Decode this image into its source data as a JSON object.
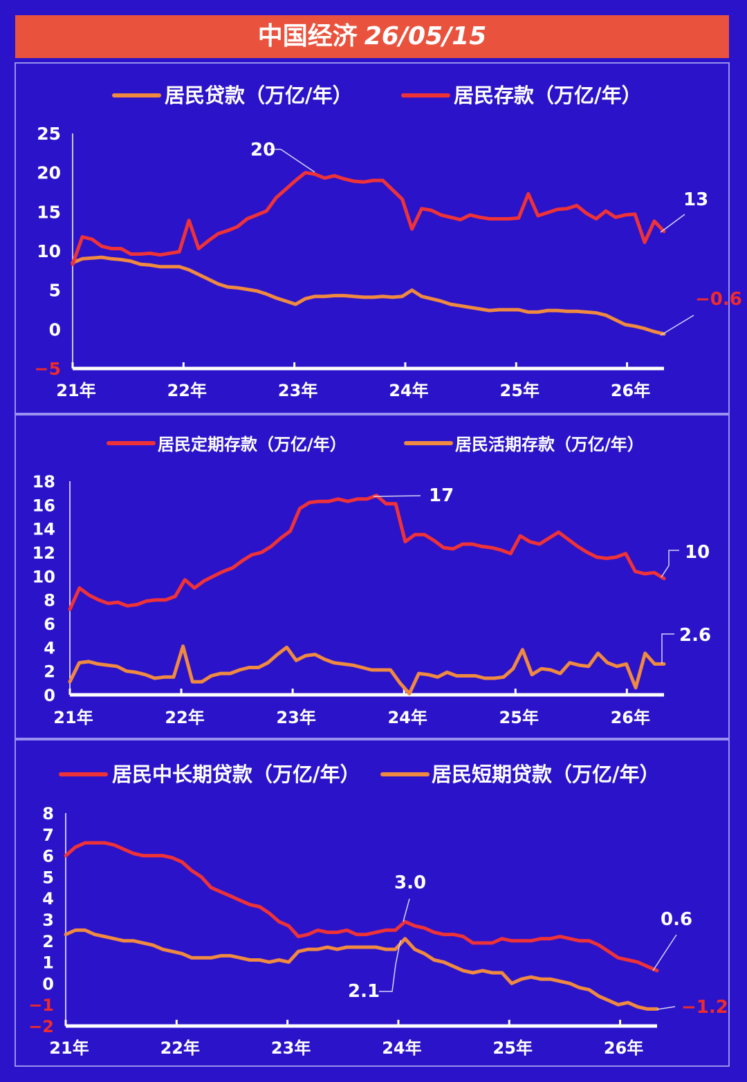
{
  "header": {
    "title_cn": "中国经济",
    "title_date": "26/05/15"
  },
  "colors": {
    "background": "#2b13c9",
    "header": "#e9533e",
    "red": "#ee3338",
    "orange": "#ef8a40",
    "axis": "#ffffff",
    "negative": "#ef2b2b"
  },
  "chart_data": [
    {
      "type": "line",
      "x_tick_labels": [
        "21年",
        "22年",
        "23年",
        "24年",
        "25年",
        "26年"
      ],
      "ylim": [
        -5,
        25
      ],
      "y_ticks": [
        "-5",
        "0",
        "5",
        "10",
        "15",
        "20",
        "25"
      ],
      "series": [
        {
          "name": "居民贷款（万亿/年）",
          "color": "#ef8a40",
          "values": [
            8.5,
            9.0,
            9.1,
            9.2,
            9.0,
            8.9,
            8.7,
            8.3,
            8.2,
            8.0,
            8.0,
            8.0,
            7.6,
            7.0,
            6.4,
            5.8,
            5.4,
            5.3,
            5.1,
            4.9,
            4.5,
            4.0,
            3.6,
            3.2,
            3.9,
            4.2,
            4.2,
            4.3,
            4.3,
            4.2,
            4.1,
            4.1,
            4.2,
            4.1,
            4.2,
            5.0,
            4.2,
            3.9,
            3.6,
            3.2,
            3.0,
            2.8,
            2.6,
            2.4,
            2.5,
            2.5,
            2.5,
            2.2,
            2.2,
            2.4,
            2.4,
            2.3,
            2.3,
            2.2,
            2.1,
            1.8,
            1.2,
            0.6,
            0.4,
            0.1,
            -0.3,
            -0.6
          ]
        },
        {
          "name": "居民存款（万亿/年）",
          "color": "#ee3338",
          "values": [
            8.3,
            11.8,
            11.5,
            10.6,
            10.3,
            10.3,
            9.6,
            9.6,
            9.7,
            9.5,
            9.7,
            9.9,
            13.9,
            10.3,
            11.3,
            12.2,
            12.6,
            13.1,
            14.1,
            14.6,
            15.1,
            16.8,
            17.9,
            19.0,
            20.0,
            19.8,
            19.3,
            19.6,
            19.2,
            18.9,
            18.8,
            19.0,
            19.0,
            17.8,
            16.6,
            12.8,
            15.4,
            15.2,
            14.6,
            14.3,
            14.0,
            14.6,
            14.3,
            14.1,
            14.1,
            14.1,
            14.2,
            17.3,
            14.5,
            14.9,
            15.3,
            15.4,
            15.8,
            14.8,
            14.1,
            15.1,
            14.3,
            14.6,
            14.7,
            11.1,
            13.8,
            12.5
          ]
        }
      ],
      "annotations": [
        {
          "label": "20",
          "color": "#ffffff"
        },
        {
          "label": "13",
          "color": "#ffffff"
        },
        {
          "label": "-0.6",
          "color": "#ef2b2b"
        }
      ]
    },
    {
      "type": "line",
      "x_tick_labels": [
        "21年",
        "22年",
        "23年",
        "24年",
        "25年",
        "26年"
      ],
      "ylim": [
        0,
        18
      ],
      "y_ticks": [
        "0",
        "2",
        "4",
        "6",
        "8",
        "10",
        "12",
        "14",
        "16",
        "18"
      ],
      "series": [
        {
          "name": "居民定期存款（万亿/年）",
          "color": "#ee3338",
          "values": [
            7.2,
            9.0,
            8.4,
            8.0,
            7.7,
            7.8,
            7.5,
            7.6,
            7.9,
            8.0,
            8.0,
            8.3,
            9.7,
            9.0,
            9.6,
            10.0,
            10.4,
            10.7,
            11.3,
            11.8,
            12.0,
            12.5,
            13.2,
            13.8,
            15.7,
            16.2,
            16.3,
            16.3,
            16.5,
            16.3,
            16.5,
            16.5,
            16.8,
            16.1,
            16.1,
            12.9,
            13.5,
            13.5,
            13.0,
            12.4,
            12.3,
            12.7,
            12.7,
            12.5,
            12.4,
            12.2,
            11.9,
            13.4,
            12.9,
            12.7,
            13.2,
            13.7,
            13.1,
            12.5,
            12.0,
            11.6,
            11.5,
            11.6,
            11.9,
            10.4,
            10.2,
            10.3,
            9.8
          ]
        },
        {
          "name": "居民活期存款（万亿/年）",
          "color": "#ef8a40",
          "values": [
            1.1,
            2.7,
            2.8,
            2.6,
            2.5,
            2.4,
            2.0,
            1.9,
            1.7,
            1.4,
            1.5,
            1.5,
            4.1,
            1.1,
            1.1,
            1.6,
            1.8,
            1.8,
            2.1,
            2.3,
            2.3,
            2.7,
            3.4,
            4.0,
            2.9,
            3.3,
            3.4,
            3.0,
            2.7,
            2.6,
            2.5,
            2.3,
            2.1,
            2.1,
            2.1,
            1.0,
            0.1,
            1.8,
            1.7,
            1.5,
            1.9,
            1.6,
            1.6,
            1.6,
            1.4,
            1.4,
            1.5,
            2.2,
            3.8,
            1.7,
            2.2,
            2.1,
            1.8,
            2.7,
            2.5,
            2.4,
            3.5,
            2.7,
            2.4,
            2.6,
            0.6,
            3.5,
            2.6,
            2.6
          ]
        }
      ],
      "annotations": [
        {
          "label": "17",
          "color": "#ffffff"
        },
        {
          "label": "10",
          "color": "#ffffff"
        },
        {
          "label": "2.6",
          "color": "#ffffff"
        }
      ]
    },
    {
      "type": "line",
      "x_tick_labels": [
        "21年",
        "22年",
        "23年",
        "24年",
        "25年",
        "26年"
      ],
      "ylim": [
        -2,
        8
      ],
      "y_ticks": [
        "-2",
        "-1",
        "0",
        "1",
        "2",
        "3",
        "4",
        "5",
        "6",
        "7",
        "8"
      ],
      "series": [
        {
          "name": "居民中长期贷款（万亿/年）",
          "color": "#ee3338",
          "values": [
            6.0,
            6.4,
            6.6,
            6.6,
            6.6,
            6.5,
            6.3,
            6.1,
            6.0,
            6.0,
            6.0,
            5.9,
            5.7,
            5.3,
            5.0,
            4.5,
            4.3,
            4.1,
            3.9,
            3.7,
            3.6,
            3.3,
            2.9,
            2.7,
            2.2,
            2.3,
            2.5,
            2.4,
            2.4,
            2.5,
            2.3,
            2.3,
            2.4,
            2.5,
            2.5,
            2.9,
            2.7,
            2.6,
            2.4,
            2.3,
            2.3,
            2.2,
            1.9,
            1.9,
            1.9,
            2.1,
            2.0,
            2.0,
            2.0,
            2.1,
            2.1,
            2.2,
            2.1,
            2.0,
            2.0,
            1.8,
            1.5,
            1.2,
            1.1,
            1.0,
            0.8,
            0.6
          ]
        },
        {
          "name": "居民短期贷款（万亿/年）",
          "color": "#ef8a40",
          "values": [
            2.3,
            2.5,
            2.5,
            2.3,
            2.2,
            2.1,
            2.0,
            2.0,
            1.9,
            1.8,
            1.6,
            1.5,
            1.4,
            1.2,
            1.2,
            1.2,
            1.3,
            1.3,
            1.2,
            1.1,
            1.1,
            1.0,
            1.1,
            1.0,
            1.5,
            1.6,
            1.6,
            1.7,
            1.6,
            1.7,
            1.7,
            1.7,
            1.7,
            1.6,
            1.6,
            2.1,
            1.6,
            1.4,
            1.1,
            1.0,
            0.8,
            0.6,
            0.5,
            0.6,
            0.5,
            0.5,
            0.0,
            0.2,
            0.3,
            0.2,
            0.2,
            0.1,
            0.0,
            -0.2,
            -0.3,
            -0.6,
            -0.8,
            -1.0,
            -0.9,
            -1.1,
            -1.2,
            -1.2
          ]
        }
      ],
      "annotations": [
        {
          "label": "3.0",
          "color": "#ffffff"
        },
        {
          "label": "2.1",
          "color": "#ffffff"
        },
        {
          "label": "0.6",
          "color": "#ffffff"
        },
        {
          "label": "-1.2",
          "color": "#ef2b2b"
        }
      ]
    }
  ]
}
